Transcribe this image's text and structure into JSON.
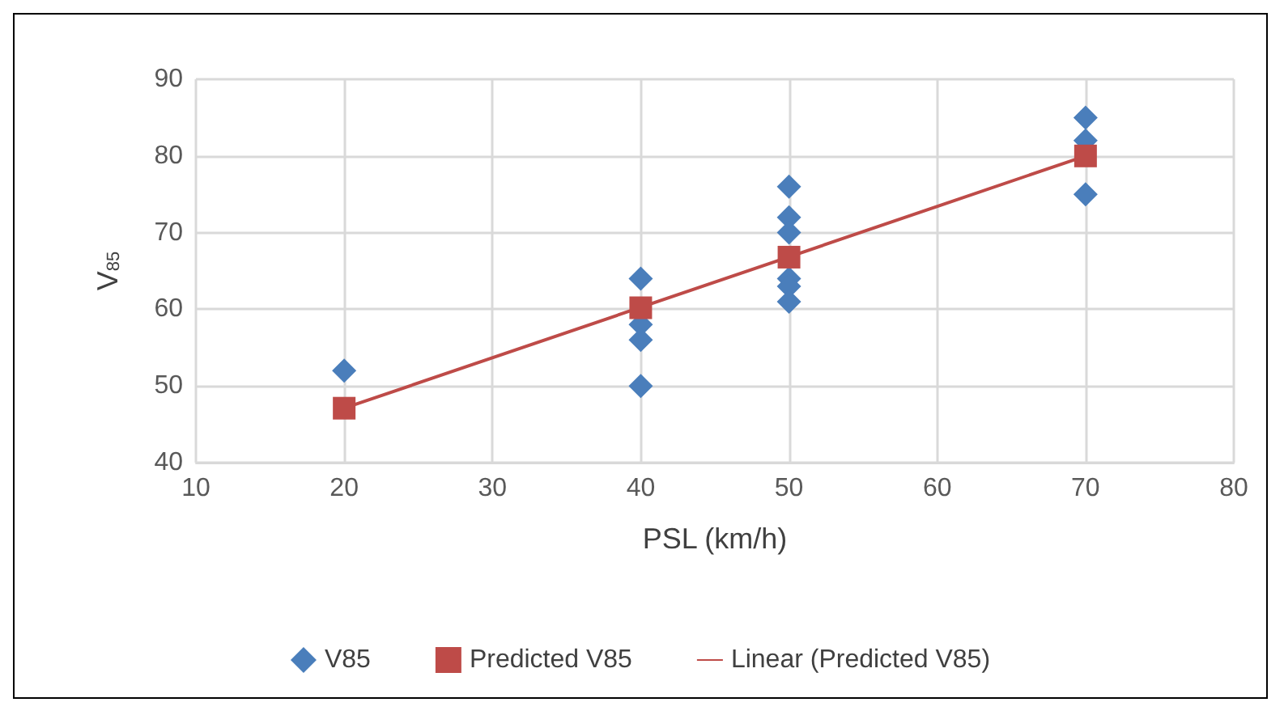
{
  "chart_data": {
    "type": "scatter",
    "xlabel": "PSL (km/h)",
    "ylabel": "V$_{85}$",
    "xlim": [
      10,
      80
    ],
    "xticks": [
      10,
      20,
      30,
      40,
      50,
      60,
      70,
      80
    ],
    "ylim": [
      40,
      90
    ],
    "yticks": [
      40,
      50,
      60,
      70,
      80,
      90
    ],
    "grid": true,
    "legend": "bottom",
    "series": [
      {
        "name": "V85",
        "type": "scatter",
        "marker": "diamond",
        "color": "#4a7ebb",
        "x": [
          20,
          40,
          40,
          40,
          40,
          50,
          50,
          50,
          50,
          50,
          50,
          70,
          70,
          70
        ],
        "values": [
          52,
          64,
          58,
          56,
          50,
          76,
          72,
          70,
          64,
          63,
          61,
          85,
          82,
          75
        ]
      },
      {
        "name": "Predicted V85",
        "type": "scatter",
        "marker": "square",
        "color": "#be4b48",
        "x": [
          20,
          40,
          50,
          70
        ],
        "values": [
          47.1,
          60.2,
          66.8,
          80
        ]
      },
      {
        "name": "Linear (Predicted V85)",
        "type": "line",
        "marker": "none",
        "line_style": "solid",
        "color": "#be4b48",
        "x": [
          20,
          70
        ],
        "values": [
          47.1,
          80
        ]
      }
    ]
  }
}
